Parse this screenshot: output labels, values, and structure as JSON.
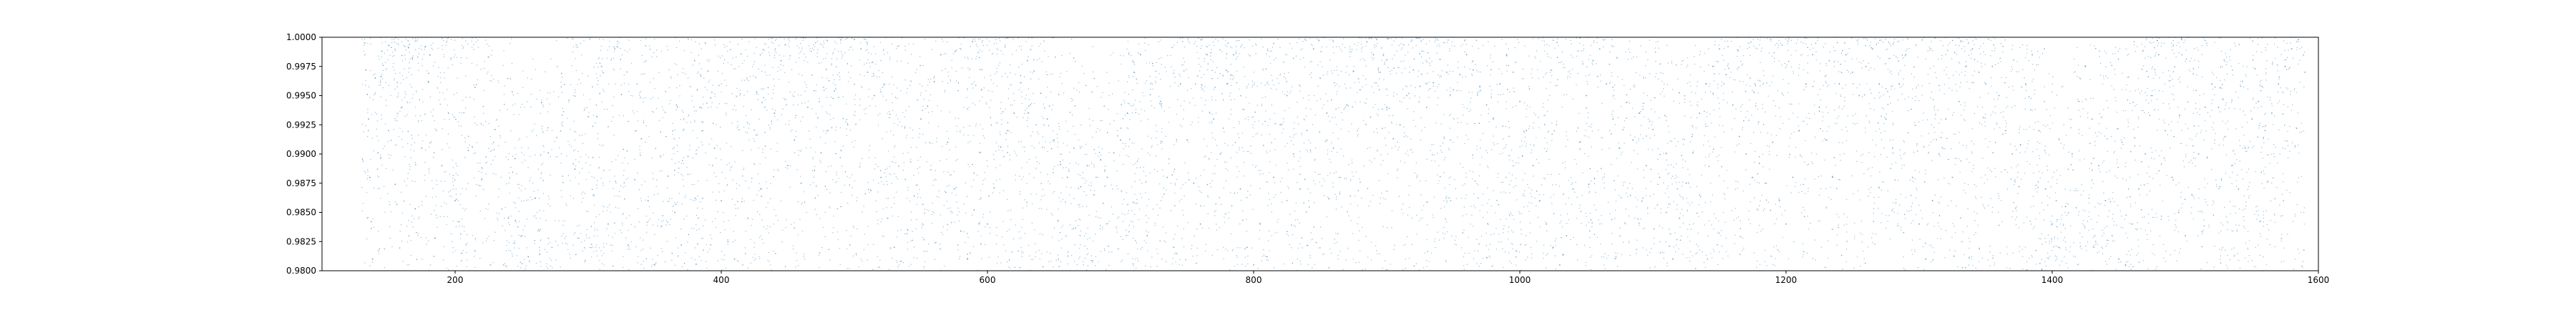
{
  "chart_data": {
    "type": "scatter",
    "title": "",
    "xlabel": "",
    "ylabel": "",
    "xlim": [
      100,
      1600
    ],
    "ylim": [
      0.98,
      1.0
    ],
    "x_ticks": [
      200,
      400,
      600,
      800,
      1000,
      1200,
      1400,
      1600
    ],
    "x_tick_labels": [
      "200",
      "400",
      "600",
      "800",
      "1000",
      "1200",
      "1400",
      "1600"
    ],
    "y_ticks": [
      0.98,
      0.9825,
      0.985,
      0.9875,
      0.99,
      0.9925,
      0.995,
      0.9975,
      1.0
    ],
    "y_tick_labels": [
      "0.9800",
      "0.9825",
      "0.9850",
      "0.9875",
      "0.9900",
      "0.9925",
      "0.9950",
      "0.9975",
      "1.0000"
    ],
    "grid": false,
    "legend": "none",
    "marker_color": "#1f77b4",
    "x_data_range": [
      130,
      1590
    ],
    "series": [
      {
        "description_free": true,
        "points": [
          [
            132,
            0.9995
          ],
          [
            133,
            0.9972
          ],
          [
            134,
            0.9951
          ],
          [
            135,
            0.993
          ],
          [
            136,
            0.988
          ],
          [
            137,
            0.9842
          ],
          [
            138,
            0.981
          ],
          [
            140,
            0.9965
          ],
          [
            142,
            0.9901
          ],
          [
            145,
            0.9988
          ],
          [
            150,
            0.992
          ],
          [
            155,
            0.9874
          ],
          [
            160,
            0.994
          ],
          [
            165,
            0.9991
          ],
          [
            170,
            0.9853
          ],
          [
            175,
            0.9905
          ],
          [
            180,
            0.9962
          ],
          [
            185,
            0.9828
          ],
          [
            190,
            0.989
          ],
          [
            195,
            0.9935
          ],
          [
            200,
            0.986
          ],
          [
            203,
            0.9842
          ],
          [
            205,
            0.9815
          ],
          [
            210,
            0.9903
          ],
          [
            215,
            0.9957
          ],
          [
            220,
            0.9878
          ],
          [
            225,
            0.9983
          ],
          [
            230,
            0.9921
          ],
          [
            240,
            0.9845
          ],
          [
            245,
            0.9896
          ],
          [
            250,
            0.983
          ],
          [
            255,
            0.9812
          ],
          [
            260,
            0.9862
          ],
          [
            265,
            0.9944
          ],
          [
            270,
            0.9901
          ],
          [
            280,
            0.9969
          ],
          [
            290,
            0.9887
          ],
          [
            300,
            0.9932
          ],
          [
            310,
            0.9975
          ],
          [
            315,
            0.984
          ],
          [
            320,
            0.999
          ],
          [
            325,
            0.9951
          ],
          [
            330,
            0.9822
          ],
          [
            335,
            0.9878
          ],
          [
            340,
            0.9913
          ],
          [
            345,
            0.986
          ],
          [
            350,
            0.9805
          ],
          [
            355,
            0.9838
          ],
          [
            360,
            0.9881
          ],
          [
            365,
            0.985
          ],
          [
            370,
            0.9822
          ],
          [
            375,
            0.9898
          ],
          [
            380,
            0.998
          ],
          [
            382,
            0.9955
          ],
          [
            384,
            0.994
          ],
          [
            386,
            0.992
          ],
          [
            388,
            0.9995
          ],
          [
            390,
            0.9971
          ],
          [
            392,
            0.9948
          ],
          [
            395,
            0.9905
          ],
          [
            400,
            0.986
          ],
          [
            405,
            0.9825
          ],
          [
            410,
            0.981
          ],
          [
            420,
            0.9845
          ],
          [
            430,
            0.987
          ],
          [
            440,
            0.9935
          ],
          [
            445,
            0.998
          ],
          [
            450,
            0.989
          ],
          [
            455,
            0.9912
          ],
          [
            460,
            0.9875
          ],
          [
            465,
            0.994
          ],
          [
            470,
            0.9886
          ],
          [
            475,
            0.9901
          ],
          [
            480,
            0.992
          ],
          [
            485,
            0.9954
          ],
          [
            490,
            0.9903
          ],
          [
            495,
            0.9925
          ],
          [
            500,
            0.9998
          ],
          [
            505,
            0.999
          ],
          [
            510,
            0.997
          ],
          [
            515,
            0.995
          ],
          [
            520,
            0.988
          ],
          [
            525,
            0.9845
          ],
          [
            530,
            0.982
          ],
          [
            535,
            0.9808
          ],
          [
            540,
            0.9835
          ],
          [
            545,
            0.9864
          ],
          [
            550,
            0.993
          ],
          [
            555,
            0.9941
          ],
          [
            560,
            0.9962
          ],
          [
            565,
            0.9985
          ],
          [
            570,
            0.991
          ],
          [
            575,
            0.987
          ],
          [
            580,
            0.9834
          ],
          [
            585,
            0.981
          ],
          [
            590,
            0.9852
          ],
          [
            595,
            0.9823
          ],
          [
            600,
            0.984
          ],
          [
            605,
            0.9871
          ],
          [
            610,
            0.9906
          ],
          [
            615,
            0.992
          ],
          [
            620,
            0.9935
          ],
          [
            625,
            0.9961
          ],
          [
            630,
            0.998
          ],
          [
            635,
            0.9971
          ],
          [
            640,
            0.9952
          ],
          [
            645,
            0.993
          ],
          [
            650,
            0.9912
          ],
          [
            655,
            0.9891
          ],
          [
            660,
            0.988
          ],
          [
            665,
            0.9905
          ],
          [
            670,
            0.9872
          ],
          [
            675,
            0.989
          ],
          [
            680,
            0.9865
          ],
          [
            685,
            0.9895
          ],
          [
            690,
            0.988
          ],
          [
            695,
            0.9901
          ],
          [
            700,
            0.9912
          ],
          [
            705,
            0.9935
          ],
          [
            710,
            0.997
          ],
          [
            715,
            0.9985
          ],
          [
            720,
            0.983
          ],
          [
            730,
            0.9945
          ],
          [
            735,
            0.988
          ],
          [
            740,
            0.982
          ],
          [
            745,
            0.996
          ],
          [
            750,
            0.9912
          ],
          [
            755,
            0.9875
          ],
          [
            760,
            0.984
          ],
          [
            765,
            0.9985
          ],
          [
            770,
            0.993
          ],
          [
            775,
            0.99
          ],
          [
            780,
            0.996
          ],
          [
            785,
            0.9985
          ],
          [
            790,
            0.987
          ],
          [
            795,
            0.982
          ],
          [
            800,
            0.9805
          ],
          [
            805,
            0.984
          ],
          [
            810,
            0.9812
          ],
          [
            815,
            0.988
          ],
          [
            820,
            0.9925
          ],
          [
            825,
            0.995
          ],
          [
            830,
            0.99
          ],
          [
            835,
            0.987
          ],
          [
            840,
            0.992
          ],
          [
            845,
            0.999
          ],
          [
            850,
            0.9965
          ],
          [
            855,
            0.9935
          ],
          [
            860,
            0.9905
          ],
          [
            865,
            0.988
          ],
          [
            870,
            0.9942
          ],
          [
            875,
            0.9971
          ],
          [
            880,
            0.9955
          ],
          [
            885,
            0.9996
          ],
          [
            890,
            0.9985
          ],
          [
            895,
            0.997
          ],
          [
            900,
            0.994
          ],
          [
            905,
            0.9913
          ],
          [
            910,
            0.9925
          ],
          [
            915,
            0.995
          ],
          [
            920,
            0.9972
          ],
          [
            925,
            0.9958
          ],
          [
            930,
            0.994
          ],
          [
            935,
            0.9961
          ],
          [
            940,
            0.9981
          ],
          [
            945,
            0.997
          ],
          [
            950,
            0.9955
          ],
          [
            955,
            0.9968
          ],
          [
            960,
            0.9985
          ],
          [
            965,
            0.9972
          ],
          [
            970,
            0.9958
          ],
          [
            975,
            0.9942
          ],
          [
            980,
            0.993
          ],
          [
            985,
            0.996
          ],
          [
            990,
            0.9985
          ],
          [
            995,
            0.997
          ],
          [
            1000,
            0.9945
          ],
          [
            1005,
            0.992
          ],
          [
            1010,
            0.989
          ],
          [
            1015,
            0.986
          ],
          [
            1020,
            0.984
          ],
          [
            1025,
            0.982
          ],
          [
            1030,
            0.9805
          ],
          [
            1035,
            0.983
          ],
          [
            1040,
            0.987
          ],
          [
            1045,
            0.991
          ],
          [
            1050,
            0.995
          ],
          [
            1055,
            0.998
          ],
          [
            1060,
            0.999
          ],
          [
            1065,
            0.996
          ],
          [
            1070,
            0.993
          ],
          [
            1075,
            0.9905
          ],
          [
            1080,
            0.9944
          ],
          [
            1085,
            0.9912
          ],
          [
            1090,
            0.9935
          ],
          [
            1095,
            0.989
          ],
          [
            1100,
            0.9921
          ],
          [
            1105,
            0.988
          ],
          [
            1110,
            0.985
          ],
          [
            1115,
            0.981
          ],
          [
            1120,
            0.9845
          ],
          [
            1125,
            0.9875
          ],
          [
            1130,
            0.9901
          ],
          [
            1135,
            0.9935
          ],
          [
            1140,
            0.996
          ],
          [
            1145,
            0.9975
          ],
          [
            1150,
            0.999
          ],
          [
            1155,
            0.9968
          ],
          [
            1160,
            0.9942
          ],
          [
            1165,
            0.9915
          ],
          [
            1170,
            0.99
          ],
          [
            1175,
            0.988
          ],
          [
            1180,
            0.9892
          ],
          [
            1185,
            0.9875
          ],
          [
            1190,
            0.991
          ],
          [
            1195,
            0.986
          ],
          [
            1200,
            0.984
          ],
          [
            1205,
            0.988
          ],
          [
            1210,
            0.992
          ],
          [
            1215,
            0.996
          ],
          [
            1220,
            0.9985
          ],
          [
            1225,
            0.994
          ],
          [
            1230,
            0.9912
          ],
          [
            1235,
            0.988
          ],
          [
            1240,
            0.996
          ],
          [
            1245,
            0.9985
          ],
          [
            1250,
            0.997
          ],
          [
            1255,
            0.995
          ],
          [
            1260,
            0.9975
          ],
          [
            1265,
            0.999
          ],
          [
            1270,
            0.996
          ],
          [
            1275,
            0.993
          ],
          [
            1280,
            0.9905
          ],
          [
            1285,
            0.996
          ],
          [
            1290,
            0.9985
          ],
          [
            1295,
            0.988
          ],
          [
            1300,
            0.984
          ],
          [
            1305,
            0.981
          ],
          [
            1310,
            0.986
          ],
          [
            1315,
            0.99
          ],
          [
            1320,
            0.993
          ],
          [
            1325,
            0.988
          ],
          [
            1330,
            0.9945
          ],
          [
            1335,
            0.9975
          ],
          [
            1340,
            0.999
          ],
          [
            1345,
            0.997
          ],
          [
            1350,
            0.996
          ],
          [
            1355,
            0.9975
          ],
          [
            1360,
            0.995
          ],
          [
            1365,
            0.992
          ],
          [
            1370,
            0.99
          ],
          [
            1375,
            0.9872
          ],
          [
            1380,
            0.996
          ],
          [
            1385,
            0.9985
          ],
          [
            1390,
            0.992
          ],
          [
            1395,
            0.987
          ],
          [
            1400,
            0.984
          ],
          [
            1405,
            0.982
          ],
          [
            1410,
            0.9855
          ],
          [
            1415,
            0.99
          ],
          [
            1420,
            0.9945
          ],
          [
            1425,
            0.9975
          ],
          [
            1430,
            0.993
          ],
          [
            1435,
            0.989
          ],
          [
            1440,
            0.986
          ],
          [
            1445,
            0.983
          ],
          [
            1450,
            0.981
          ],
          [
            1455,
            0.9805
          ],
          [
            1460,
            0.984
          ],
          [
            1465,
            0.987
          ],
          [
            1470,
            0.99
          ],
          [
            1475,
            0.995
          ],
          [
            1480,
            0.9985
          ],
          [
            1485,
            0.992
          ],
          [
            1490,
            0.988
          ],
          [
            1495,
            0.985
          ],
          [
            1500,
            0.983
          ],
          [
            1505,
            0.9865
          ],
          [
            1510,
            0.99
          ],
          [
            1515,
            0.994
          ],
          [
            1520,
            0.996
          ],
          [
            1525,
            0.994
          ],
          [
            1530,
            0.9915
          ],
          [
            1535,
            0.989
          ],
          [
            1540,
            0.987
          ],
          [
            1545,
            0.9905
          ],
          [
            1550,
            0.993
          ],
          [
            1555,
            0.9945
          ],
          [
            1560,
            0.992
          ],
          [
            1565,
            0.9935
          ],
          [
            1570,
            0.996
          ],
          [
            1575,
            0.9975
          ],
          [
            1580,
            0.999
          ],
          [
            1585,
            0.9998
          ],
          [
            1590,
            0.997
          ]
        ]
      }
    ]
  }
}
